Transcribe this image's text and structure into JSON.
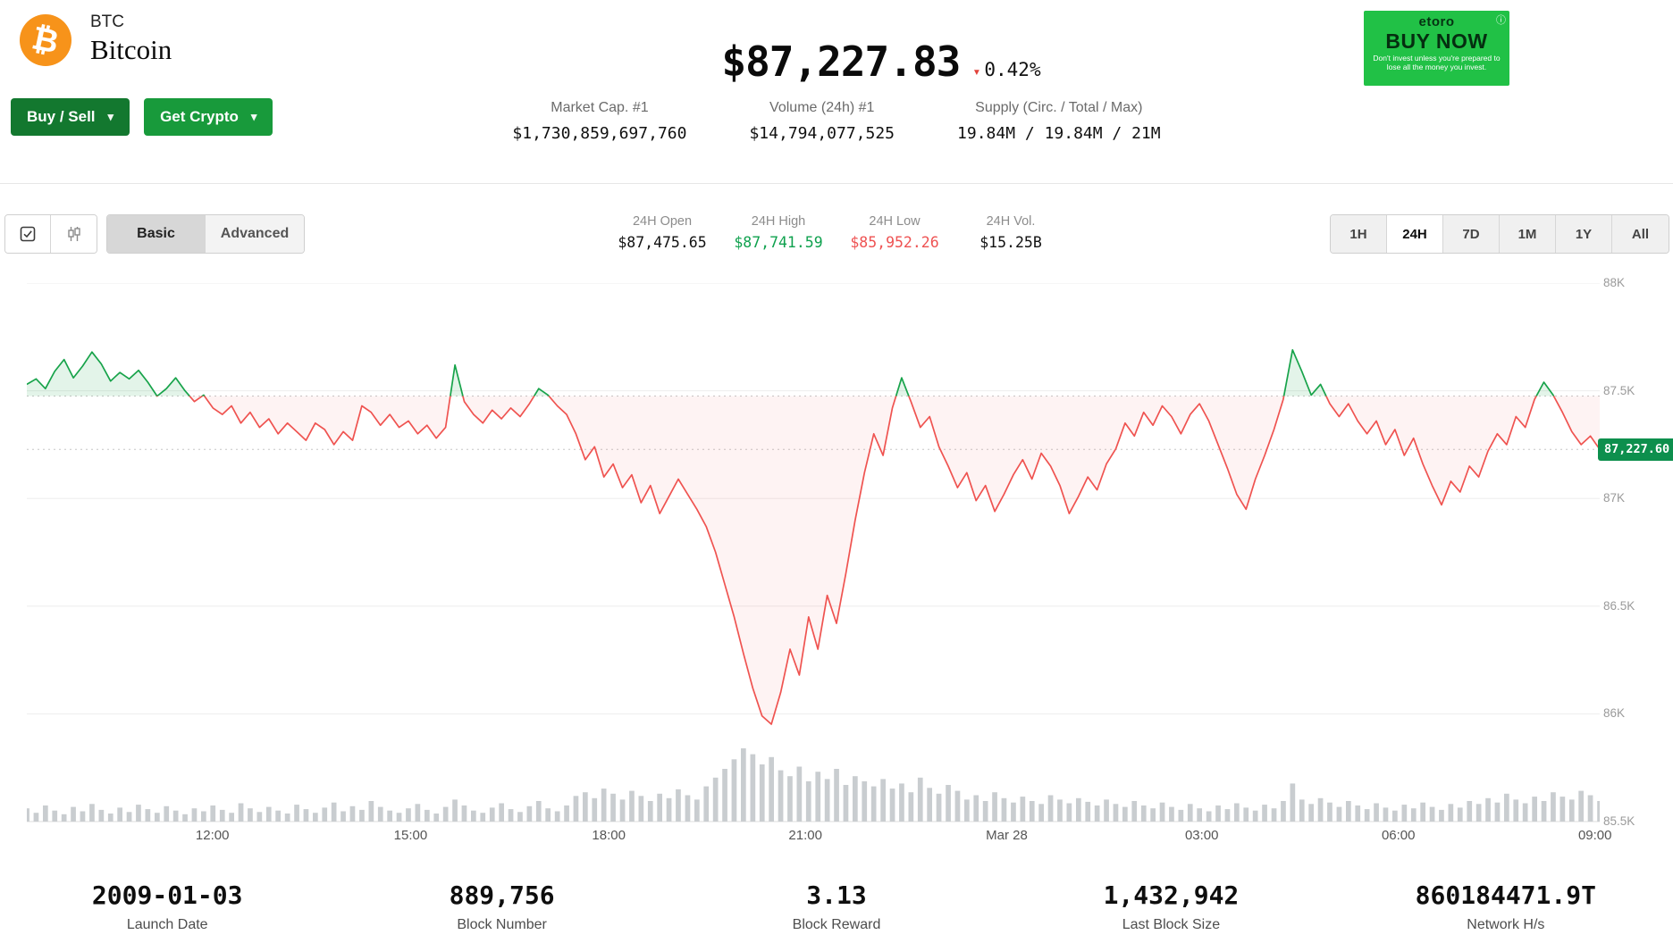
{
  "header": {
    "symbol": "BTC",
    "name": "Bitcoin",
    "buy_sell_label": "Buy / Sell",
    "get_crypto_label": "Get Crypto",
    "price": "$87,227.83",
    "change_pct": "0.42%",
    "change_direction": "down",
    "stats": [
      {
        "label": "Market Cap. #1",
        "value": "$1,730,859,697,760"
      },
      {
        "label": "Volume (24h) #1",
        "value": "$14,794,077,525"
      },
      {
        "label": "Supply (Circ. / Total / Max)",
        "value": "19.84M / 19.84M / 21M"
      }
    ],
    "ad": {
      "brand": "etoro",
      "cta": "BUY NOW",
      "disclaimer": "Don't invest unless you're prepared to lose all the money you invest."
    }
  },
  "toolbar": {
    "modes": [
      "Basic",
      "Advanced"
    ],
    "active_mode": "Basic",
    "ohlc": [
      {
        "label": "24H Open",
        "value": "$87,475.65",
        "color": "#111111"
      },
      {
        "label": "24H High",
        "value": "$87,741.59",
        "color": "#0fa14e"
      },
      {
        "label": "24H Low",
        "value": "$85,952.26",
        "color": "#ee5252"
      },
      {
        "label": "24H Vol.",
        "value": "$15.25B",
        "color": "#111111"
      }
    ],
    "ranges": [
      "1H",
      "24H",
      "7D",
      "1M",
      "1Y",
      "All"
    ],
    "active_range": "24H"
  },
  "chart_data": {
    "type": "line",
    "title": "Bitcoin price, 24H",
    "open_price": 87475.65,
    "high": 87741.59,
    "low": 85952.26,
    "last_price": 87227.6,
    "last_price_label": "87,227.60",
    "ylim": [
      85500,
      88000
    ],
    "y_ticks": [
      {
        "label": "88K",
        "value": 88000
      },
      {
        "label": "87.5K",
        "value": 87500
      },
      {
        "label": "87K",
        "value": 87000
      },
      {
        "label": "86.5K",
        "value": 86500
      },
      {
        "label": "86K",
        "value": 86000
      },
      {
        "label": "85.5K",
        "value": 85500
      }
    ],
    "x_ticks": [
      {
        "label": "12:00",
        "f": 0.118
      },
      {
        "label": "15:00",
        "f": 0.244
      },
      {
        "label": "18:00",
        "f": 0.37
      },
      {
        "label": "21:00",
        "f": 0.495
      },
      {
        "label": "Mar 28",
        "f": 0.623
      },
      {
        "label": "03:00",
        "f": 0.747
      },
      {
        "label": "06:00",
        "f": 0.872
      },
      {
        "label": "09:00",
        "f": 0.997
      }
    ],
    "prices": [
      87530,
      87555,
      87510,
      87590,
      87645,
      87560,
      87615,
      87680,
      87625,
      87545,
      87585,
      87555,
      87595,
      87540,
      87475,
      87510,
      87560,
      87500,
      87450,
      87480,
      87420,
      87390,
      87430,
      87350,
      87400,
      87330,
      87370,
      87300,
      87350,
      87310,
      87270,
      87350,
      87320,
      87250,
      87310,
      87270,
      87430,
      87400,
      87340,
      87390,
      87330,
      87360,
      87300,
      87340,
      87280,
      87330,
      87620,
      87450,
      87390,
      87350,
      87410,
      87370,
      87420,
      87380,
      87440,
      87510,
      87480,
      87430,
      87390,
      87300,
      87180,
      87240,
      87100,
      87160,
      87050,
      87110,
      86980,
      87060,
      86930,
      87010,
      87090,
      87020,
      86950,
      86870,
      86750,
      86600,
      86450,
      86280,
      86120,
      85990,
      85952,
      86100,
      86300,
      86180,
      86450,
      86300,
      86550,
      86420,
      86650,
      86900,
      87120,
      87300,
      87200,
      87420,
      87560,
      87450,
      87330,
      87380,
      87240,
      87150,
      87050,
      87120,
      86990,
      87060,
      86940,
      87020,
      87110,
      87180,
      87090,
      87210,
      87150,
      87060,
      86930,
      87010,
      87100,
      87040,
      87160,
      87230,
      87350,
      87290,
      87400,
      87340,
      87430,
      87380,
      87300,
      87390,
      87440,
      87360,
      87250,
      87140,
      87020,
      86950,
      87090,
      87200,
      87320,
      87460,
      87690,
      87590,
      87480,
      87530,
      87440,
      87380,
      87440,
      87360,
      87300,
      87360,
      87250,
      87320,
      87200,
      87280,
      87160,
      87060,
      86970,
      87080,
      87030,
      87150,
      87100,
      87220,
      87300,
      87250,
      87380,
      87330,
      87460,
      87540,
      87480,
      87400,
      87310,
      87250,
      87290,
      87228
    ],
    "volumes": [
      18,
      12,
      22,
      15,
      10,
      20,
      14,
      24,
      16,
      11,
      19,
      13,
      23,
      17,
      12,
      21,
      15,
      10,
      18,
      14,
      22,
      16,
      12,
      25,
      18,
      13,
      20,
      15,
      11,
      23,
      17,
      12,
      19,
      26,
      14,
      21,
      16,
      28,
      20,
      15,
      12,
      18,
      24,
      16,
      11,
      20,
      30,
      22,
      15,
      12,
      19,
      25,
      17,
      13,
      21,
      28,
      18,
      14,
      22,
      35,
      40,
      32,
      45,
      38,
      30,
      42,
      35,
      28,
      38,
      32,
      44,
      36,
      30,
      48,
      60,
      72,
      85,
      100,
      92,
      78,
      88,
      70,
      62,
      75,
      55,
      68,
      58,
      72,
      50,
      62,
      55,
      48,
      58,
      45,
      52,
      40,
      60,
      46,
      38,
      50,
      42,
      30,
      36,
      28,
      40,
      32,
      26,
      34,
      28,
      24,
      36,
      30,
      25,
      32,
      27,
      22,
      30,
      24,
      20,
      28,
      22,
      18,
      26,
      20,
      16,
      24,
      18,
      14,
      22,
      17,
      25,
      19,
      15,
      23,
      18,
      28,
      52,
      30,
      24,
      32,
      26,
      20,
      28,
      22,
      17,
      25,
      19,
      15,
      23,
      18,
      26,
      20,
      16,
      24,
      19,
      28,
      24,
      32,
      26,
      38,
      30,
      25,
      34,
      28,
      40,
      34,
      30,
      42,
      36,
      28
    ],
    "colors": {
      "up": "#17a34a",
      "down": "#ef5350",
      "up_fill": "rgba(23,163,74,0.12)",
      "down_fill": "rgba(239,83,80,0.07)",
      "volume": "#c9cdd0",
      "badge": "#0d8f4d"
    },
    "legend": "off",
    "grid": "on"
  },
  "footer_stats": [
    {
      "value": "2009-01-03",
      "label": "Launch Date"
    },
    {
      "value": "889,756",
      "label": "Block Number"
    },
    {
      "value": "3.13",
      "label": "Block Reward"
    },
    {
      "value": "1,432,942",
      "label": "Last Block Size"
    },
    {
      "value": "860184471.9T",
      "label": "Network H/s"
    }
  ]
}
